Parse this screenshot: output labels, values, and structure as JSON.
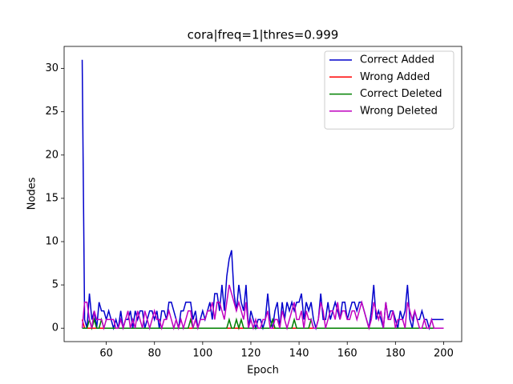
{
  "chart_data": {
    "type": "line",
    "title": "cora|freq=1|thres=0.999",
    "x_label": "Epoch",
    "y_label": "Nodes",
    "x": [
      50,
      51,
      52,
      53,
      54,
      55,
      56,
      57,
      58,
      59,
      60,
      61,
      62,
      63,
      64,
      65,
      66,
      67,
      68,
      69,
      70,
      71,
      72,
      73,
      74,
      75,
      76,
      77,
      78,
      79,
      80,
      81,
      82,
      83,
      84,
      85,
      86,
      87,
      88,
      89,
      90,
      91,
      92,
      93,
      94,
      95,
      96,
      97,
      98,
      99,
      100,
      101,
      102,
      103,
      104,
      105,
      106,
      107,
      108,
      109,
      110,
      111,
      112,
      113,
      114,
      115,
      116,
      117,
      118,
      119,
      120,
      121,
      122,
      123,
      124,
      125,
      126,
      127,
      128,
      129,
      130,
      131,
      132,
      133,
      134,
      135,
      136,
      137,
      138,
      139,
      140,
      141,
      142,
      143,
      144,
      145,
      146,
      147,
      148,
      149,
      150,
      151,
      152,
      153,
      154,
      155,
      156,
      157,
      158,
      159,
      160,
      161,
      162,
      163,
      164,
      165,
      166,
      167,
      168,
      169,
      170,
      171,
      172,
      173,
      174,
      175,
      176,
      177,
      178,
      179,
      180,
      181,
      182,
      183,
      184,
      185,
      186,
      187,
      188,
      189,
      190,
      191,
      192,
      193,
      194,
      195,
      196,
      197,
      198,
      199,
      200
    ],
    "series": [
      {
        "name": "Correct Added",
        "color": "#0000cc",
        "values": [
          31,
          1,
          0,
          4,
          1,
          2,
          0,
          3,
          2,
          2,
          1,
          2,
          1,
          0,
          1,
          0,
          2,
          0,
          1,
          1,
          2,
          0,
          2,
          1,
          2,
          2,
          0,
          1,
          2,
          2,
          1,
          2,
          0,
          2,
          2,
          1,
          3,
          3,
          2,
          1,
          0,
          2,
          2,
          3,
          3,
          3,
          1,
          2,
          0,
          1,
          2,
          1,
          2,
          3,
          1,
          4,
          4,
          2,
          5,
          2,
          6,
          8,
          9,
          4,
          2,
          5,
          3,
          2,
          5,
          0,
          2,
          1,
          0,
          1,
          1,
          0,
          1,
          4,
          1,
          0,
          2,
          3,
          0,
          3,
          1,
          3,
          2,
          3,
          2,
          3,
          3,
          4,
          1,
          3,
          2,
          3,
          1,
          0,
          1,
          4,
          1,
          1,
          3,
          1,
          2,
          3,
          2,
          1,
          3,
          3,
          1,
          2,
          3,
          3,
          2,
          3,
          3,
          2,
          1,
          0,
          2,
          5,
          1,
          2,
          1,
          0,
          3,
          1,
          2,
          2,
          1,
          0,
          2,
          1,
          2,
          5,
          1,
          0,
          2,
          1,
          1,
          2,
          1,
          1,
          0,
          1,
          1,
          1,
          1,
          1,
          1
        ]
      },
      {
        "name": "Wrong Added",
        "color": "#ff0000",
        "values": [
          1,
          0,
          0,
          0,
          0,
          0,
          0,
          0,
          0,
          0,
          0,
          0,
          0,
          0,
          0,
          0,
          0,
          0,
          0,
          0,
          0,
          0,
          0,
          0,
          0,
          0,
          0,
          0,
          0,
          0,
          0,
          0,
          0,
          0,
          0,
          0,
          0,
          0,
          0,
          0,
          0,
          0,
          0,
          0,
          0,
          0,
          0,
          0,
          0,
          0,
          0,
          0,
          0,
          0,
          0,
          0,
          0,
          0,
          0,
          0,
          0,
          0,
          0,
          0,
          0,
          0,
          0,
          0,
          0,
          0,
          0,
          0,
          0,
          0,
          0,
          0,
          0,
          0,
          0,
          0,
          0,
          0,
          0,
          0,
          0,
          0,
          0,
          0,
          0,
          0,
          0,
          0,
          0,
          0,
          0,
          0,
          0,
          0,
          0,
          0,
          0,
          0,
          0,
          0,
          0,
          0,
          0,
          0,
          0,
          0,
          0,
          0,
          0,
          0,
          0,
          0,
          0,
          0,
          0,
          0,
          0,
          0,
          0,
          0,
          0,
          0,
          0,
          0,
          0,
          0,
          0,
          0,
          0,
          0,
          0,
          0,
          0,
          0,
          0,
          0,
          0,
          0,
          0,
          0,
          0,
          0,
          0,
          0,
          0,
          0,
          0
        ]
      },
      {
        "name": "Correct Deleted",
        "color": "#008000",
        "values": [
          0,
          0,
          0,
          1,
          0,
          1,
          0,
          0,
          1,
          0,
          0,
          0,
          0,
          0,
          0,
          0,
          0,
          0,
          0,
          0,
          0,
          0,
          0,
          0,
          0,
          0,
          0,
          0,
          0,
          0,
          0,
          0,
          0,
          0,
          0,
          0,
          0,
          0,
          0,
          0,
          0,
          0,
          0,
          0,
          0,
          1,
          0,
          0,
          0,
          0,
          0,
          0,
          0,
          0,
          0,
          0,
          0,
          0,
          0,
          0,
          0,
          1,
          0,
          0,
          1,
          0,
          1,
          0,
          0,
          0,
          0,
          0,
          0,
          0,
          0,
          0,
          0,
          0,
          0,
          1,
          0,
          0,
          0,
          0,
          0,
          0,
          0,
          0,
          1,
          0,
          0,
          0,
          0,
          0,
          0,
          1,
          0,
          0,
          0,
          0,
          0,
          0,
          0,
          0,
          0,
          0,
          0,
          0,
          0,
          0,
          0,
          0,
          0,
          0,
          0,
          0,
          0,
          0,
          0,
          0,
          0,
          0,
          0,
          0,
          0,
          0,
          0,
          0,
          0,
          0,
          0,
          0,
          0,
          0,
          0,
          0,
          0,
          0,
          0,
          0,
          0,
          0,
          0,
          0,
          0,
          0,
          0,
          0,
          0,
          0,
          0
        ]
      },
      {
        "name": "Wrong Deleted",
        "color": "#bf00bf",
        "values": [
          0,
          3,
          3,
          1,
          0,
          2,
          1,
          1,
          1,
          0,
          1,
          1,
          1,
          1,
          0,
          0,
          1,
          0,
          1,
          2,
          0,
          1,
          0,
          2,
          1,
          0,
          2,
          1,
          0,
          1,
          2,
          1,
          1,
          0,
          1,
          1,
          2,
          1,
          0,
          1,
          0,
          1,
          0,
          1,
          2,
          2,
          0,
          1,
          0,
          1,
          1,
          1,
          2,
          2,
          3,
          1,
          3,
          3,
          2,
          1,
          3,
          5,
          4,
          3,
          2,
          3,
          2,
          1,
          3,
          0,
          1,
          0,
          1,
          0,
          0,
          1,
          1,
          2,
          0,
          0,
          1,
          1,
          0,
          2,
          1,
          0,
          1,
          2,
          3,
          1,
          1,
          2,
          0,
          2,
          1,
          1,
          0,
          0,
          1,
          3,
          2,
          0,
          1,
          2,
          2,
          1,
          3,
          1,
          2,
          2,
          1,
          1,
          2,
          2,
          1,
          2,
          3,
          2,
          1,
          0,
          1,
          3,
          2,
          1,
          2,
          0,
          3,
          1,
          1,
          2,
          0,
          1,
          1,
          1,
          0,
          3,
          2,
          1,
          2,
          1,
          0,
          0,
          1,
          0,
          0,
          1,
          0,
          0,
          0,
          0,
          0
        ]
      }
    ],
    "xlim": [
      42.5,
      207.5
    ],
    "xticks": [
      60,
      80,
      100,
      120,
      140,
      160,
      180,
      200
    ],
    "ylim": [
      -1.55,
      32.55
    ],
    "yticks": [
      0,
      5,
      10,
      15,
      20,
      25,
      30
    ],
    "legend": "upper right"
  }
}
